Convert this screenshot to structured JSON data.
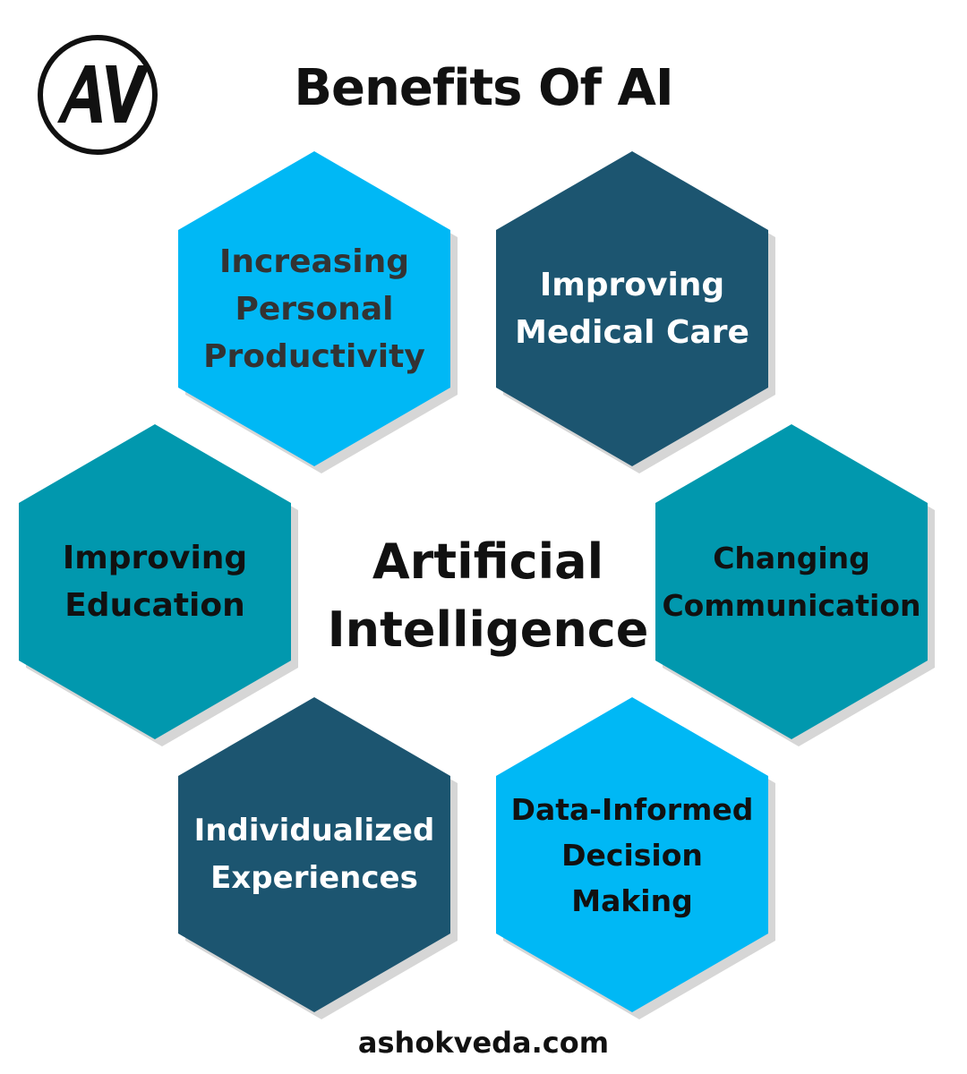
{
  "title": "Benefits Of AI",
  "logo": {
    "text": "AV",
    "icon": "av-monogram-logo"
  },
  "center": {
    "label": "Artificial\nIntelligence"
  },
  "colors": {
    "light_blue": "#00b8f5",
    "navy": "#1c5570",
    "teal": "#0198ae",
    "dark_text": "#333333",
    "white_text": "#ffffff",
    "black_text": "#111111"
  },
  "benefits": [
    {
      "label": "Increasing\nPersonal\nProductivity"
    },
    {
      "label": "Improving\nMedical Care"
    },
    {
      "label": "Improving\nEducation"
    },
    {
      "label": "Changing\nCommunication"
    },
    {
      "label": "Individualized\nExperiences"
    },
    {
      "label": "Data-Informed\nDecision\nMaking"
    }
  ],
  "footer": "ashokveda.com"
}
